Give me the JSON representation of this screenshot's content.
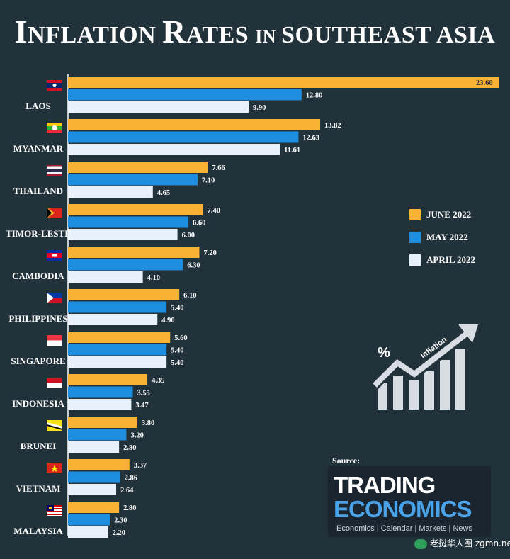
{
  "title": {
    "part1": "I",
    "part2": "NFLATION ",
    "part3": "R",
    "part4": "ATES ",
    "part5": "IN ",
    "part6": "SOUTHEAST ASIA"
  },
  "chart_data": {
    "type": "bar",
    "orientation": "horizontal",
    "title": "INFLATION RATES IN SOUTHEAST ASIA",
    "categories": [
      "LAOS",
      "MYANMAR",
      "THAILAND",
      "TIMOR-LESTE",
      "CAMBODIA",
      "PHILIPPINES",
      "SINGAPORE",
      "INDONESIA",
      "BRUNEI",
      "VIETNAM",
      "MALAYSIA"
    ],
    "series": [
      {
        "name": "JUNE 2022",
        "color": "#f9b233",
        "values": [
          23.6,
          13.82,
          7.66,
          7.4,
          7.2,
          6.1,
          5.6,
          4.35,
          3.8,
          3.37,
          2.8
        ]
      },
      {
        "name": "MAY 2022",
        "color": "#1e8fe0",
        "values": [
          12.8,
          12.63,
          7.1,
          6.6,
          6.3,
          5.4,
          5.4,
          3.55,
          3.2,
          2.86,
          2.3
        ]
      },
      {
        "name": "APRIL 2022",
        "color": "#e8f1fb",
        "values": [
          9.9,
          11.61,
          4.65,
          6.0,
          4.1,
          4.9,
          5.4,
          3.47,
          2.8,
          2.64,
          2.2
        ]
      }
    ],
    "value_labels": [
      [
        "23.60",
        "12.80",
        "9.90"
      ],
      [
        "13.82",
        "12.63",
        "11.61"
      ],
      [
        "7.66",
        "7.10",
        "4.65"
      ],
      [
        "7.40",
        "6.60",
        "6.00"
      ],
      [
        "7.20",
        "6.30",
        "4.10"
      ],
      [
        "6.10",
        "5.40",
        "4.90"
      ],
      [
        "5.60",
        "5.40",
        "5.40"
      ],
      [
        "4.35",
        "3.55",
        "3.47"
      ],
      [
        "3.80",
        "3.20",
        "2.80"
      ],
      [
        "3.37",
        "2.86",
        "2.64"
      ],
      [
        "2.80",
        "2.30",
        "2.20"
      ]
    ],
    "xlim": [
      0,
      23.6
    ],
    "grid": false,
    "legend_position": "right"
  },
  "graphic": {
    "percent_symbol": "%",
    "arrow_label": "Inflation",
    "icon": "rising-bar-chart-arrow-icon"
  },
  "source": {
    "label": "Source:",
    "logo_line1": "TRADING",
    "logo_line2": "ECONOMICS",
    "tagline": "Economics | Calendar | Markets | News"
  },
  "watermark": {
    "text": "老挝华人圈",
    "url": "zgmn.net"
  },
  "colors": {
    "background": "#22323b",
    "june": "#f9b233",
    "may": "#1e8fe0",
    "april": "#e8f1fb"
  },
  "flags": [
    "laos-flag-icon",
    "myanmar-flag-icon",
    "thailand-flag-icon",
    "timor-leste-flag-icon",
    "cambodia-flag-icon",
    "philippines-flag-icon",
    "singapore-flag-icon",
    "indonesia-flag-icon",
    "brunei-flag-icon",
    "vietnam-flag-icon",
    "malaysia-flag-icon"
  ]
}
